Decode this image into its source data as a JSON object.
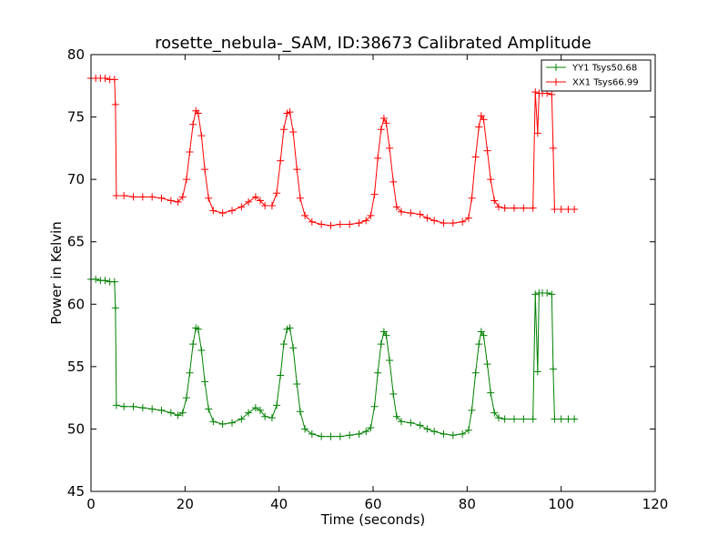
{
  "chart_data": {
    "type": "line",
    "title": "rosette_nebula-_SAM, ID:38673 Calibrated Amplitude",
    "xlabel": "Time (seconds)",
    "ylabel": "Power in Kelvin",
    "xlim": [
      0,
      120
    ],
    "ylim": [
      45,
      80
    ],
    "xticks": [
      "0",
      "20",
      "40",
      "60",
      "80",
      "100",
      "120"
    ],
    "yticks": [
      "45",
      "50",
      "55",
      "60",
      "65",
      "70",
      "75",
      "80"
    ],
    "grid": false,
    "legend_position": "top-right",
    "marker": "+",
    "series": [
      {
        "name": "YY1 Tsys50.68",
        "color": "#008000",
        "points": [
          [
            0,
            62.0
          ],
          [
            1,
            62.0
          ],
          [
            2,
            61.9
          ],
          [
            3,
            61.9
          ],
          [
            4,
            61.8
          ],
          [
            5,
            61.8
          ],
          [
            5.2,
            59.7
          ],
          [
            5.4,
            51.9
          ],
          [
            7,
            51.8
          ],
          [
            9,
            51.8
          ],
          [
            11,
            51.7
          ],
          [
            13,
            51.6
          ],
          [
            15,
            51.5
          ],
          [
            17,
            51.3
          ],
          [
            18.5,
            51.1
          ],
          [
            19.5,
            51.3
          ],
          [
            20.3,
            52.5
          ],
          [
            21,
            54.5
          ],
          [
            21.7,
            56.8
          ],
          [
            22.3,
            58.1
          ],
          [
            22.8,
            58.0
          ],
          [
            23.5,
            56.3
          ],
          [
            24.2,
            53.8
          ],
          [
            25,
            51.6
          ],
          [
            26,
            50.6
          ],
          [
            28,
            50.4
          ],
          [
            30,
            50.5
          ],
          [
            32,
            50.8
          ],
          [
            33.5,
            51.3
          ],
          [
            35,
            51.7
          ],
          [
            36,
            51.5
          ],
          [
            37,
            51.0
          ],
          [
            38.5,
            50.9
          ],
          [
            39.5,
            51.9
          ],
          [
            40.3,
            54.3
          ],
          [
            41,
            56.8
          ],
          [
            41.7,
            58.0
          ],
          [
            42.3,
            58.1
          ],
          [
            43,
            56.5
          ],
          [
            43.8,
            53.6
          ],
          [
            44.5,
            51.4
          ],
          [
            45.5,
            50.0
          ],
          [
            47,
            49.6
          ],
          [
            49,
            49.4
          ],
          [
            51,
            49.4
          ],
          [
            53,
            49.4
          ],
          [
            55,
            49.5
          ],
          [
            57,
            49.6
          ],
          [
            58.5,
            49.8
          ],
          [
            59.5,
            50.1
          ],
          [
            60.3,
            51.8
          ],
          [
            61,
            54.5
          ],
          [
            61.7,
            56.8
          ],
          [
            62.3,
            57.8
          ],
          [
            62.8,
            57.5
          ],
          [
            63.5,
            55.5
          ],
          [
            64.3,
            52.8
          ],
          [
            65,
            51.0
          ],
          [
            66,
            50.6
          ],
          [
            68,
            50.5
          ],
          [
            70,
            50.3
          ],
          [
            71.5,
            50.0
          ],
          [
            73,
            49.8
          ],
          [
            75,
            49.6
          ],
          [
            77,
            49.5
          ],
          [
            79,
            49.6
          ],
          [
            80.3,
            49.9
          ],
          [
            81,
            51.5
          ],
          [
            81.8,
            54.5
          ],
          [
            82.5,
            56.8
          ],
          [
            83,
            57.8
          ],
          [
            83.5,
            57.5
          ],
          [
            84.3,
            55.2
          ],
          [
            85,
            52.9
          ],
          [
            85.8,
            51.3
          ],
          [
            86.7,
            50.9
          ],
          [
            88,
            50.8
          ],
          [
            90,
            50.8
          ],
          [
            92,
            50.8
          ],
          [
            94,
            50.8
          ],
          [
            94.5,
            60.8
          ],
          [
            95,
            54.6
          ],
          [
            95.3,
            60.9
          ],
          [
            96,
            60.9
          ],
          [
            97,
            60.9
          ],
          [
            98,
            60.8
          ],
          [
            98.3,
            54.8
          ],
          [
            98.6,
            50.8
          ],
          [
            100,
            50.8
          ],
          [
            101.5,
            50.8
          ],
          [
            102.8,
            50.8
          ]
        ]
      },
      {
        "name": "XX1 Tsys66.99",
        "color": "#ff0000",
        "points": [
          [
            0,
            78.1
          ],
          [
            1,
            78.1
          ],
          [
            2,
            78.1
          ],
          [
            3,
            78.1
          ],
          [
            4,
            78.0
          ],
          [
            5,
            78.0
          ],
          [
            5.2,
            76.0
          ],
          [
            5.4,
            68.7
          ],
          [
            7,
            68.7
          ],
          [
            9,
            68.6
          ],
          [
            11,
            68.6
          ],
          [
            13,
            68.6
          ],
          [
            15,
            68.5
          ],
          [
            17,
            68.3
          ],
          [
            18.5,
            68.2
          ],
          [
            19.5,
            68.6
          ],
          [
            20.3,
            70.0
          ],
          [
            21,
            72.2
          ],
          [
            21.7,
            74.4
          ],
          [
            22.3,
            75.5
          ],
          [
            22.8,
            75.3
          ],
          [
            23.5,
            73.5
          ],
          [
            24.2,
            70.8
          ],
          [
            25,
            68.5
          ],
          [
            26,
            67.5
          ],
          [
            28,
            67.3
          ],
          [
            30,
            67.5
          ],
          [
            32,
            67.8
          ],
          [
            33.5,
            68.2
          ],
          [
            35,
            68.6
          ],
          [
            36,
            68.3
          ],
          [
            37,
            67.9
          ],
          [
            38.5,
            67.9
          ],
          [
            39.5,
            68.9
          ],
          [
            40.3,
            71.5
          ],
          [
            41,
            74.0
          ],
          [
            41.7,
            75.3
          ],
          [
            42.3,
            75.4
          ],
          [
            43,
            73.8
          ],
          [
            43.8,
            70.8
          ],
          [
            44.5,
            68.5
          ],
          [
            45.5,
            67.1
          ],
          [
            47,
            66.6
          ],
          [
            49,
            66.4
          ],
          [
            51,
            66.3
          ],
          [
            53,
            66.4
          ],
          [
            55,
            66.4
          ],
          [
            57,
            66.5
          ],
          [
            58.5,
            66.7
          ],
          [
            59.5,
            67.1
          ],
          [
            60.3,
            68.8
          ],
          [
            61,
            71.7
          ],
          [
            61.7,
            74.0
          ],
          [
            62.3,
            74.9
          ],
          [
            62.8,
            74.5
          ],
          [
            63.5,
            72.5
          ],
          [
            64.3,
            69.8
          ],
          [
            65,
            67.8
          ],
          [
            66,
            67.4
          ],
          [
            68,
            67.3
          ],
          [
            70,
            67.2
          ],
          [
            71.5,
            66.9
          ],
          [
            73,
            66.7
          ],
          [
            75,
            66.5
          ],
          [
            77,
            66.5
          ],
          [
            79,
            66.6
          ],
          [
            80.3,
            66.9
          ],
          [
            81,
            68.5
          ],
          [
            81.8,
            71.8
          ],
          [
            82.5,
            74.2
          ],
          [
            83,
            75.1
          ],
          [
            83.5,
            74.8
          ],
          [
            84.3,
            72.3
          ],
          [
            85,
            70.0
          ],
          [
            85.8,
            68.3
          ],
          [
            86.7,
            67.8
          ],
          [
            88,
            67.7
          ],
          [
            90,
            67.7
          ],
          [
            92,
            67.7
          ],
          [
            94,
            67.7
          ],
          [
            94.5,
            77.0
          ],
          [
            95,
            73.7
          ],
          [
            95.3,
            76.9
          ],
          [
            96,
            76.9
          ],
          [
            97,
            76.9
          ],
          [
            98,
            76.8
          ],
          [
            98.3,
            72.5
          ],
          [
            98.6,
            67.6
          ],
          [
            100,
            67.6
          ],
          [
            101.5,
            67.6
          ],
          [
            102.8,
            67.6
          ]
        ]
      }
    ]
  }
}
